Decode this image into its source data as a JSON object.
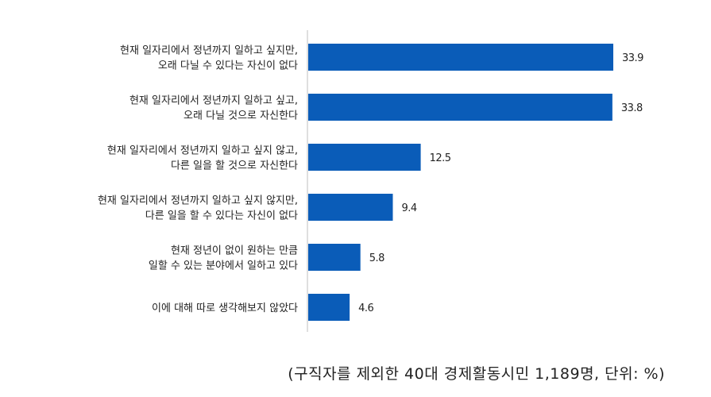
{
  "chart_data": {
    "type": "bar",
    "orientation": "horizontal",
    "categories": [
      [
        "현재 일자리에서 정년까지 일하고 싶지만,",
        "오래 다닐 수 있다는 자신이 없다"
      ],
      [
        "현재 일자리에서 정년까지 일하고 싶고,",
        "오래 다닐 것으로 자신한다"
      ],
      [
        "현재 일자리에서 정년까지 일하고 싶지 않고,",
        "다른 일을 할 것으로 자신한다"
      ],
      [
        "현재 일자리에서 정년까지 일하고 싶지 않지만,",
        "다른 일을 할 수 있다는 자신이 없다"
      ],
      [
        "현재 정년이 없이 원하는 만큼",
        "일할 수 있는 분야에서 일하고 있다"
      ],
      [
        "이에 대해 따로 생각해보지 않았다"
      ]
    ],
    "values": [
      33.9,
      33.8,
      12.5,
      9.4,
      5.8,
      4.6
    ],
    "value_labels": [
      "33.9",
      "33.8",
      "12.5",
      "9.4",
      "5.8",
      "4.6"
    ],
    "xlim": [
      0,
      40
    ],
    "bar_color": "#0a5cb8",
    "axis_color": "#bfbfbf",
    "grid": false,
    "legend": "none"
  },
  "note": "(구직자를 제외한 40대 경제활동시민 1,189명, 단위: %)"
}
